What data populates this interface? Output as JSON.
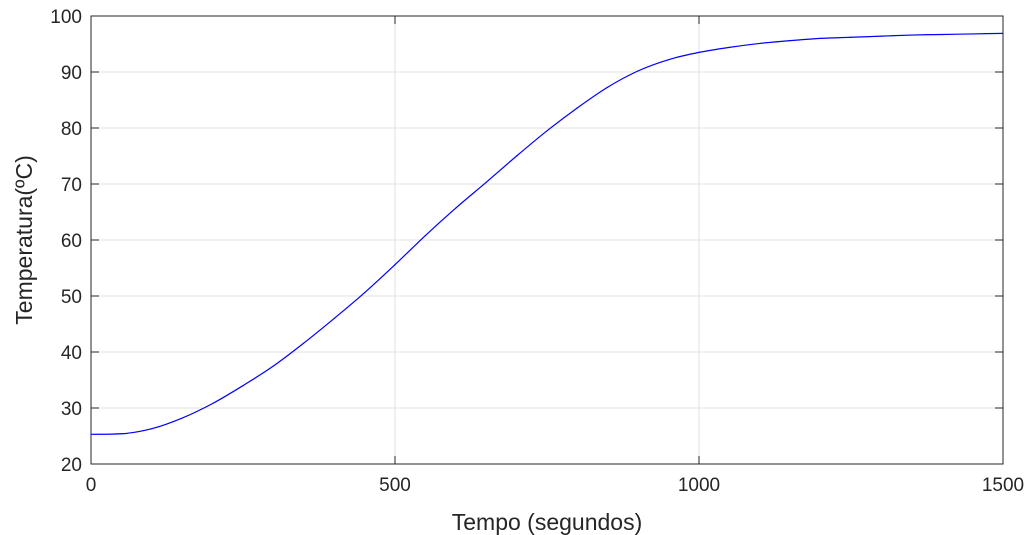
{
  "chart_data": {
    "type": "line",
    "title": "",
    "xlabel": "Tempo (segundos)",
    "ylabel": "Temperatura(ºC)",
    "xlim": [
      0,
      1500
    ],
    "ylim": [
      20,
      100
    ],
    "xticks": [
      0,
      500,
      1000,
      1500
    ],
    "yticks": [
      20,
      30,
      40,
      50,
      60,
      70,
      80,
      90,
      100
    ],
    "grid": true,
    "colors": {
      "line": "#0000ff",
      "grid": "#e0e0e0",
      "axis": "#262626"
    },
    "series": [
      {
        "values_x": [
          0,
          50,
          100,
          150,
          200,
          250,
          300,
          350,
          400,
          450,
          500,
          550,
          600,
          650,
          700,
          750,
          800,
          850,
          900,
          950,
          1000,
          1050,
          1100,
          1150,
          1200,
          1250,
          1300,
          1350,
          1400,
          1450,
          1500
        ],
        "values_y": [
          25.3,
          25.4,
          26.3,
          28.2,
          30.8,
          34.0,
          37.5,
          41.6,
          46.0,
          50.6,
          55.6,
          60.8,
          65.7,
          70.3,
          75.0,
          79.5,
          83.6,
          87.3,
          90.2,
          92.2,
          93.5,
          94.4,
          95.1,
          95.6,
          96.0,
          96.2,
          96.4,
          96.6,
          96.7,
          96.8,
          96.9
        ]
      }
    ]
  }
}
